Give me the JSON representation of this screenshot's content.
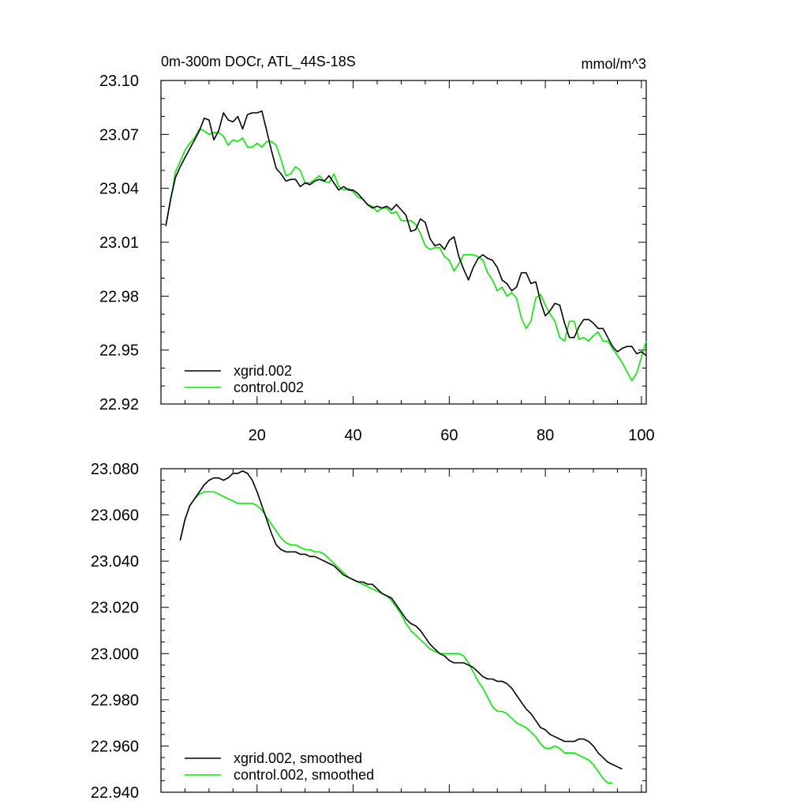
{
  "chart_data": [
    {
      "type": "line",
      "title": "0m-300m DOCr, ATL_44S-18S",
      "units": "mmol/m^3",
      "xlabel": "",
      "ylabel": "",
      "xlim": [
        0,
        101
      ],
      "ylim": [
        22.92,
        23.1
      ],
      "x_ticks": [
        20,
        40,
        60,
        80,
        100
      ],
      "x_tick_labels": [
        "20",
        "40",
        "60",
        "80",
        "100"
      ],
      "y_ticks": [
        22.92,
        22.95,
        22.98,
        23.01,
        23.04,
        23.07,
        23.1
      ],
      "y_tick_labels": [
        "22.92",
        "22.95",
        "22.98",
        "23.01",
        "23.04",
        "23.07",
        "23.10"
      ],
      "legend_position": "bottom-left",
      "x_start": 1,
      "series": [
        {
          "name": "xgrid.002",
          "color": "#000000",
          "values": [
            23.019,
            23.034,
            23.046,
            23.052,
            23.057,
            23.062,
            23.067,
            23.072,
            23.079,
            23.078,
            23.067,
            23.072,
            23.082,
            23.078,
            23.077,
            23.08,
            23.073,
            23.081,
            23.082,
            23.082,
            23.083,
            23.072,
            23.061,
            23.051,
            23.048,
            23.044,
            23.045,
            23.045,
            23.041,
            23.043,
            23.042,
            23.044,
            23.045,
            23.044,
            23.047,
            23.043,
            23.039,
            23.041,
            23.039,
            23.039,
            23.037,
            23.034,
            23.031,
            23.029,
            23.03,
            23.029,
            23.03,
            23.028,
            23.031,
            23.028,
            23.025,
            23.016,
            23.017,
            23.023,
            23.021,
            23.012,
            23.008,
            23.009,
            23.006,
            23.011,
            23.013,
            23.002,
            22.995,
            22.989,
            22.996,
            23.001,
            23.003,
            23.001,
            23.0,
            22.996,
            22.989,
            22.987,
            22.983,
            22.985,
            22.993,
            22.993,
            22.987,
            22.988,
            22.977,
            22.969,
            22.972,
            22.976,
            22.975,
            22.965,
            22.957,
            22.957,
            22.963,
            22.967,
            22.967,
            22.965,
            22.962,
            22.962,
            22.957,
            22.952,
            22.949,
            22.951,
            22.952,
            22.952,
            22.948,
            22.949,
            22.947
          ]
        },
        {
          "name": "control.002",
          "color": "#00ee00",
          "values": [
            23.019,
            23.033,
            23.049,
            23.055,
            23.061,
            23.065,
            23.068,
            23.073,
            23.072,
            23.07,
            23.071,
            23.071,
            23.069,
            23.064,
            23.067,
            23.066,
            23.068,
            23.063,
            23.063,
            23.065,
            23.063,
            23.066,
            23.066,
            23.064,
            23.056,
            23.047,
            23.048,
            23.052,
            23.05,
            23.043,
            23.043,
            23.045,
            23.047,
            23.044,
            23.043,
            23.048,
            23.041,
            23.039,
            23.04,
            23.038,
            23.035,
            23.034,
            23.031,
            23.03,
            23.027,
            23.029,
            23.029,
            23.026,
            23.027,
            23.022,
            23.022,
            23.022,
            23.02,
            23.015,
            23.008,
            23.006,
            23.007,
            23.007,
            23.002,
            23.0,
            22.994,
            22.998,
            23.003,
            23.003,
            23.003,
            23.002,
            23.0,
            22.993,
            22.989,
            22.983,
            22.985,
            22.98,
            22.982,
            22.979,
            22.968,
            22.962,
            22.966,
            22.979,
            22.981,
            22.975,
            22.97,
            22.966,
            22.957,
            22.955,
            22.966,
            22.966,
            22.956,
            22.957,
            22.955,
            22.958,
            22.96,
            22.955,
            22.955,
            22.951,
            22.947,
            22.943,
            22.938,
            22.933,
            22.937,
            22.946,
            22.955
          ]
        }
      ]
    },
    {
      "type": "line",
      "title": "",
      "xlabel": "",
      "ylabel": "",
      "xlim": [
        0,
        101
      ],
      "ylim": [
        22.94,
        23.08
      ],
      "x_ticks": [
        20,
        40,
        60,
        80,
        100
      ],
      "y_ticks": [
        22.94,
        22.96,
        22.98,
        23.0,
        23.02,
        23.04,
        23.06,
        23.08
      ],
      "y_tick_labels": [
        "22.940",
        "22.960",
        "22.980",
        "23.000",
        "23.020",
        "23.040",
        "23.060",
        "23.080"
      ],
      "legend_position": "bottom-left",
      "x_start": 4,
      "series": [
        {
          "name": "xgrid.002, smoothed",
          "color": "#000000",
          "values": [
            23.049,
            23.058,
            23.064,
            23.067,
            23.07,
            23.073,
            23.075,
            23.076,
            23.076,
            23.075,
            23.076,
            23.078,
            23.078,
            23.079,
            23.078,
            23.075,
            23.07,
            23.064,
            23.058,
            23.052,
            23.047,
            23.045,
            23.044,
            23.044,
            23.044,
            23.043,
            23.043,
            23.042,
            23.042,
            23.041,
            23.04,
            23.039,
            23.038,
            23.036,
            23.034,
            23.033,
            23.032,
            23.031,
            23.031,
            23.03,
            23.03,
            23.028,
            23.026,
            23.025,
            23.024,
            23.021,
            23.018,
            23.015,
            23.013,
            23.012,
            23.01,
            23.007,
            23.004,
            23.002,
            23.0,
            22.999,
            22.997,
            22.996,
            22.996,
            22.996,
            22.995,
            22.994,
            22.992,
            22.99,
            22.989,
            22.989,
            22.988,
            22.988,
            22.987,
            22.985,
            22.982,
            22.979,
            22.976,
            22.974,
            22.971,
            22.968,
            22.967,
            22.965,
            22.964,
            22.963,
            22.962,
            22.962,
            22.962,
            22.963,
            22.963,
            22.962,
            22.96,
            22.957,
            22.955,
            22.953,
            22.952,
            22.951,
            22.95
          ]
        },
        {
          "name": "control.002, smoothed",
          "color": "#00ee00",
          "values": [
            23.049,
            23.058,
            23.064,
            23.067,
            23.069,
            23.07,
            23.07,
            23.07,
            23.069,
            23.068,
            23.067,
            23.066,
            23.065,
            23.065,
            23.065,
            23.065,
            23.064,
            23.062,
            23.059,
            23.056,
            23.053,
            23.05,
            23.048,
            23.047,
            23.047,
            23.046,
            23.045,
            23.045,
            23.044,
            23.044,
            23.043,
            23.041,
            23.039,
            23.037,
            23.035,
            23.033,
            23.032,
            23.031,
            23.03,
            23.029,
            23.028,
            23.027,
            23.026,
            23.025,
            23.023,
            23.02,
            23.017,
            23.013,
            23.01,
            23.008,
            23.006,
            23.004,
            23.002,
            23.001,
            23.0,
            23.0,
            23.0,
            23.0,
            23.0,
            22.999,
            22.996,
            22.992,
            22.988,
            22.985,
            22.981,
            22.977,
            22.975,
            22.975,
            22.974,
            22.972,
            22.97,
            22.969,
            22.968,
            22.966,
            22.964,
            22.961,
            22.959,
            22.959,
            22.96,
            22.959,
            22.957,
            22.957,
            22.957,
            22.956,
            22.955,
            22.954,
            22.952,
            22.949,
            22.946,
            22.944,
            22.944
          ]
        }
      ]
    }
  ]
}
